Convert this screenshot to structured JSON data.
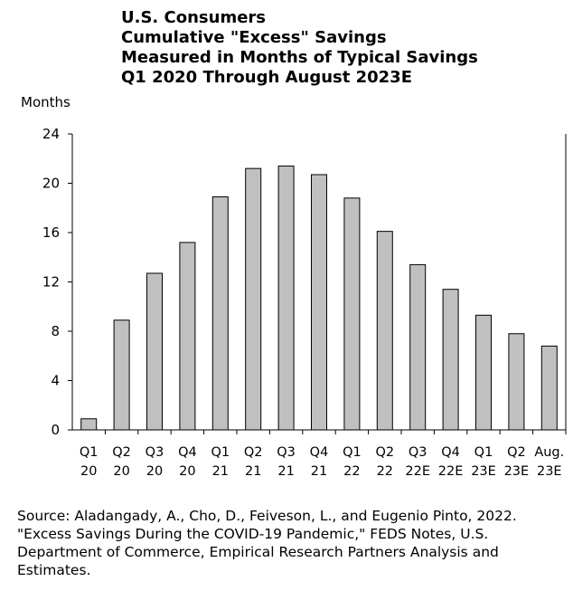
{
  "title_lines": [
    "U.S. Consumers",
    "Cumulative \"Excess\" Savings",
    "Measured in Months of Typical Savings",
    "Q1 2020 Through August 2023E"
  ],
  "source_lines": [
    "Source: Aladangady, A., Cho, D., Feiveson, L., and Eugenio Pinto, 2022.",
    "\"Excess Savings During the COVID-19 Pandemic,\" FEDS Notes, U.S.",
    "Department of Commerce, Empirical Research Partners Analysis and",
    "Estimates."
  ],
  "colors": {
    "bar_fill": "#c0c0c0",
    "bar_stroke": "#000000",
    "axis": "#000000"
  },
  "chart_data": {
    "type": "bar",
    "title": "U.S. Consumers Cumulative \"Excess\" Savings Measured in Months of Typical Savings Q1 2020 Through August 2023E",
    "ylabel": "Months",
    "xlabel": "",
    "ylim": [
      0,
      24
    ],
    "yticks": [
      0,
      4,
      8,
      12,
      16,
      20,
      24
    ],
    "grid": false,
    "categories": [
      [
        "Q1",
        "20"
      ],
      [
        "Q2",
        "20"
      ],
      [
        "Q3",
        "20"
      ],
      [
        "Q4",
        "20"
      ],
      [
        "Q1",
        "21"
      ],
      [
        "Q2",
        "21"
      ],
      [
        "Q3",
        "21"
      ],
      [
        "Q4",
        "21"
      ],
      [
        "Q1",
        "22"
      ],
      [
        "Q2",
        "22"
      ],
      [
        "Q3",
        "22E"
      ],
      [
        "Q4",
        "22E"
      ],
      [
        "Q1",
        "23E"
      ],
      [
        "Q2",
        "23E"
      ],
      [
        "Aug.",
        "23E"
      ]
    ],
    "values": [
      0.9,
      8.9,
      12.7,
      15.2,
      18.9,
      21.2,
      21.4,
      20.7,
      18.8,
      16.1,
      13.4,
      11.4,
      9.3,
      7.8,
      6.8
    ]
  }
}
